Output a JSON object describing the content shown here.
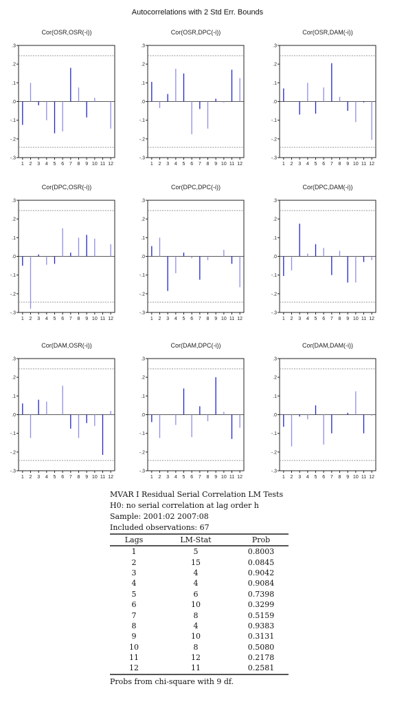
{
  "figure_title": "Autocorrelations with 2 Std Err. Bounds",
  "colors": {
    "bar_dark": "#1e22c8",
    "bar_light": "#8c8ce6",
    "bound": "#888888",
    "axis": "#222222"
  },
  "chart_data": [
    {
      "type": "bar",
      "title": "Cor(OSR,OSR(-i))",
      "categories": [
        "1",
        "2",
        "3",
        "4",
        "5",
        "6",
        "7",
        "8",
        "9",
        "10",
        "11",
        "12"
      ],
      "values": [
        -0.125,
        0.1,
        -0.02,
        -0.1,
        -0.17,
        -0.16,
        0.18,
        0.075,
        -0.085,
        0.02,
        0.0,
        -0.145
      ],
      "bounds": [
        0.245,
        -0.245
      ],
      "yticks": [
        ".3",
        ".2",
        ".1",
        ".0",
        "-.1",
        "-.2",
        "-.3"
      ],
      "ylim": [
        -0.3,
        0.3
      ]
    },
    {
      "type": "bar",
      "title": "Cor(OSR,DPC(-i))",
      "categories": [
        "1",
        "2",
        "3",
        "4",
        "5",
        "6",
        "7",
        "8",
        "9",
        "10",
        "11",
        "12"
      ],
      "values": [
        0.105,
        -0.035,
        0.04,
        0.175,
        0.15,
        -0.175,
        -0.04,
        -0.145,
        0.015,
        -0.005,
        0.17,
        0.125
      ],
      "bounds": [
        0.245,
        -0.245
      ],
      "yticks": [
        ".3",
        ".2",
        ".1",
        ".0",
        "-.1",
        "-.2",
        "-.3"
      ],
      "ylim": [
        -0.3,
        0.3
      ]
    },
    {
      "type": "bar",
      "title": "Cor(OSR,DAM(-i))",
      "categories": [
        "1",
        "2",
        "3",
        "4",
        "5",
        "6",
        "7",
        "8",
        "9",
        "10",
        "11",
        "12"
      ],
      "values": [
        0.07,
        0.0,
        -0.07,
        0.1,
        -0.065,
        0.075,
        0.205,
        0.025,
        -0.05,
        -0.11,
        -0.005,
        -0.205
      ],
      "bounds": [
        0.245,
        -0.245
      ],
      "yticks": [
        ".3",
        ".2",
        ".1",
        ".0",
        "-.1",
        "-.2",
        "-.3"
      ],
      "ylim": [
        -0.3,
        0.3
      ]
    },
    {
      "type": "bar",
      "title": "Cor(DPC,OSR(-i))",
      "categories": [
        "1",
        "2",
        "3",
        "4",
        "5",
        "6",
        "7",
        "8",
        "9",
        "10",
        "11",
        "12"
      ],
      "values": [
        -0.05,
        -0.28,
        0.01,
        -0.045,
        -0.04,
        0.15,
        0.02,
        0.1,
        0.115,
        0.095,
        0.0,
        0.065
      ],
      "bounds": [
        0.245,
        -0.245
      ],
      "yticks": [
        ".3",
        ".2",
        ".1",
        ".0",
        "-.1",
        "-.2",
        "-.3"
      ],
      "ylim": [
        -0.3,
        0.3
      ]
    },
    {
      "type": "bar",
      "title": "Cor(DPC,DPC(-i))",
      "categories": [
        "1",
        "2",
        "3",
        "4",
        "5",
        "6",
        "7",
        "8",
        "9",
        "10",
        "11",
        "12"
      ],
      "values": [
        0.055,
        0.1,
        -0.185,
        -0.09,
        0.02,
        -0.01,
        -0.125,
        -0.02,
        0.0,
        0.035,
        -0.04,
        -0.165
      ],
      "bounds": [
        0.245,
        -0.245
      ],
      "yticks": [
        ".3",
        ".2",
        ".1",
        ".0",
        "-.1",
        "-.2",
        "-.3"
      ],
      "ylim": [
        -0.3,
        0.3
      ]
    },
    {
      "type": "bar",
      "title": "Cor(DPC,DAM(-i))",
      "categories": [
        "1",
        "2",
        "3",
        "4",
        "5",
        "6",
        "7",
        "8",
        "9",
        "10",
        "11",
        "12"
      ],
      "values": [
        -0.105,
        -0.075,
        0.175,
        0.015,
        0.065,
        0.045,
        -0.1,
        0.03,
        -0.14,
        -0.14,
        -0.03,
        -0.02
      ],
      "bounds": [
        0.245,
        -0.245
      ],
      "yticks": [
        ".3",
        ".2",
        ".1",
        ".0",
        "-.1",
        "-.2",
        "-.3"
      ],
      "ylim": [
        -0.3,
        0.3
      ]
    },
    {
      "type": "bar",
      "title": "Cor(DAM,OSR(-i))",
      "categories": [
        "1",
        "2",
        "3",
        "4",
        "5",
        "6",
        "7",
        "8",
        "9",
        "10",
        "11",
        "12"
      ],
      "values": [
        0.06,
        -0.125,
        0.08,
        0.07,
        0.0,
        0.155,
        -0.075,
        -0.125,
        -0.045,
        -0.06,
        -0.215,
        0.02
      ],
      "bounds": [
        0.245,
        -0.245
      ],
      "yticks": [
        ".3",
        ".2",
        ".1",
        ".0",
        "-.1",
        "-.2",
        "-.3"
      ],
      "ylim": [
        -0.3,
        0.3
      ]
    },
    {
      "type": "bar",
      "title": "Cor(DAM,DPC(-i))",
      "categories": [
        "1",
        "2",
        "3",
        "4",
        "5",
        "6",
        "7",
        "8",
        "9",
        "10",
        "11",
        "12"
      ],
      "values": [
        -0.04,
        -0.125,
        0.0,
        -0.055,
        0.14,
        -0.12,
        0.045,
        -0.035,
        0.2,
        0.015,
        -0.13,
        -0.07
      ],
      "bounds": [
        0.245,
        -0.245
      ],
      "yticks": [
        ".3",
        ".2",
        ".1",
        ".0",
        "-.1",
        "-.2",
        "-.3"
      ],
      "ylim": [
        -0.3,
        0.3
      ]
    },
    {
      "type": "bar",
      "title": "Cor(DAM,DAM(-i))",
      "categories": [
        "1",
        "2",
        "3",
        "4",
        "5",
        "6",
        "7",
        "8",
        "9",
        "10",
        "11",
        "12"
      ],
      "values": [
        -0.065,
        -0.17,
        -0.01,
        -0.025,
        0.05,
        -0.16,
        -0.1,
        0.0,
        0.01,
        0.125,
        -0.1,
        -0.005
      ],
      "bounds": [
        0.245,
        -0.245
      ],
      "yticks": [
        ".3",
        ".2",
        ".1",
        ".0",
        "-.1",
        "-.2",
        "-.3"
      ],
      "ylim": [
        -0.3,
        0.3
      ]
    }
  ],
  "lm_test": {
    "title": "MVAR I Residual Serial Correlation LM Tests",
    "h0": "H0: no serial correlation at lag order h",
    "sample": "Sample: 2001:02 2007:08",
    "observations": "Included observations: 67",
    "columns": [
      "Lags",
      "LM-Stat",
      "Prob"
    ],
    "rows": [
      [
        "1",
        "5",
        "0.8003"
      ],
      [
        "2",
        "15",
        "0.0845"
      ],
      [
        "3",
        "4",
        "0.9042"
      ],
      [
        "4",
        "4",
        "0.9084"
      ],
      [
        "5",
        "6",
        "0.7398"
      ],
      [
        "6",
        "10",
        "0.3299"
      ],
      [
        "7",
        "8",
        "0.5159"
      ],
      [
        "8",
        "4",
        "0.9383"
      ],
      [
        "9",
        "10",
        "0.3131"
      ],
      [
        "10",
        "8",
        "0.5080"
      ],
      [
        "11",
        "12",
        "0.2178"
      ],
      [
        "12",
        "11",
        "0.2581"
      ]
    ],
    "footnote": "Probs from chi-square with 9 df."
  }
}
